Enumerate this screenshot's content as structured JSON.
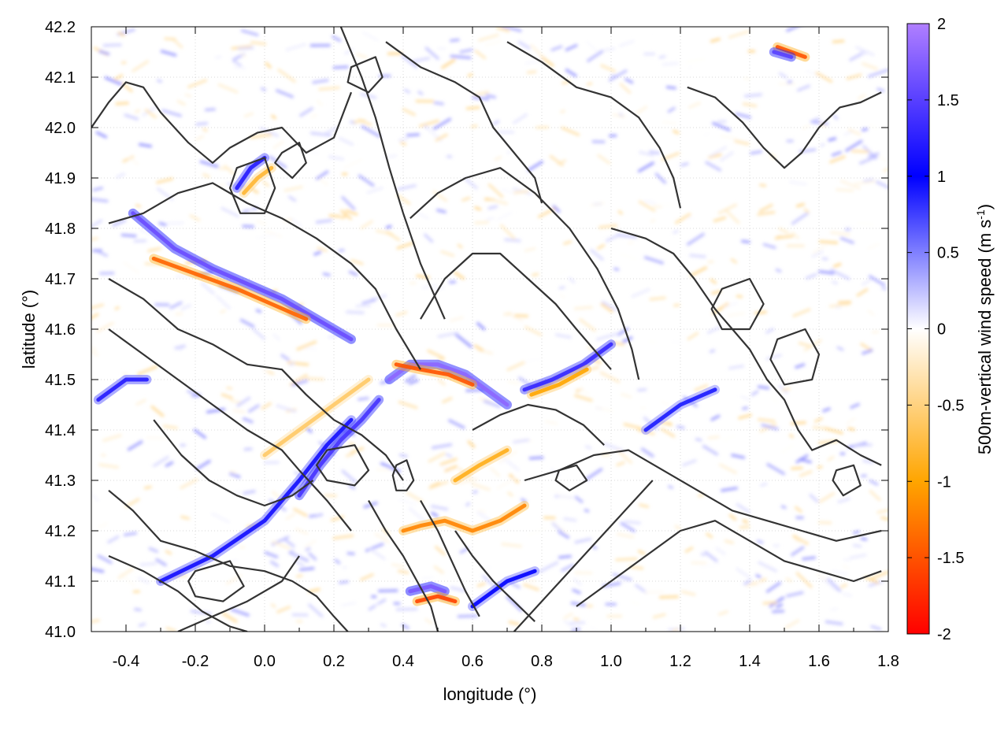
{
  "chart_data": {
    "type": "heatmap",
    "title": "",
    "xlabel": "longitude (°)",
    "ylabel": "latitude (°)",
    "xlim": [
      -0.5,
      1.8
    ],
    "ylim": [
      41.0,
      42.2
    ],
    "xticks": [
      -0.4,
      -0.2,
      0.0,
      0.2,
      0.4,
      0.6,
      0.8,
      1.0,
      1.2,
      1.4,
      1.6,
      1.8
    ],
    "xtick_labels": [
      "-0.4",
      "-0.2",
      "0.0",
      "0.2",
      "0.4",
      "0.6",
      "0.8",
      "1.0",
      "1.2",
      "1.4",
      "1.6",
      "1.8"
    ],
    "yticks": [
      41.0,
      41.1,
      41.2,
      41.3,
      41.4,
      41.5,
      41.6,
      41.7,
      41.8,
      41.9,
      42.0,
      42.1,
      42.2
    ],
    "ytick_labels": [
      "41.0",
      "41.1",
      "41.2",
      "41.3",
      "41.4",
      "41.5",
      "41.6",
      "41.7",
      "41.8",
      "41.9",
      "42.0",
      "42.1",
      "42.2"
    ],
    "grid": true,
    "colorbar": {
      "label_main": "500m-vertical wind speed (m s",
      "label_sup": "-1",
      "label_close": ")",
      "range": [
        -2,
        2
      ],
      "ticks": [
        -2,
        -1.5,
        -1,
        -0.5,
        0,
        0.5,
        1,
        1.5,
        2
      ],
      "tick_labels": [
        "-2",
        "-1.5",
        "-1",
        "-0.5",
        "0",
        "0.5",
        "1",
        "1.5",
        "2"
      ],
      "colors": {
        "-2": "#ff0000",
        "-1": "#ffa500",
        "0": "#ffffff",
        "1": "#0000ff",
        "2": "#b07fff"
      }
    },
    "features": [
      {
        "name": "ridge-nw",
        "lon": [
          -0.38,
          -0.26,
          -0.15,
          -0.05,
          0.05,
          0.15,
          0.25
        ],
        "lat": [
          41.83,
          41.76,
          41.72,
          41.69,
          41.66,
          41.62,
          41.58
        ],
        "value": 1.6
      },
      {
        "name": "ridge-nw-lee",
        "lon": [
          -0.32,
          -0.2,
          -0.08,
          0.02,
          0.12
        ],
        "lat": [
          41.74,
          41.71,
          41.68,
          41.65,
          41.62
        ],
        "value": -1.4
      },
      {
        "name": "ridge-central",
        "lon": [
          0.36,
          0.42,
          0.5,
          0.58,
          0.64,
          0.7
        ],
        "lat": [
          41.5,
          41.53,
          41.53,
          41.51,
          41.48,
          41.45
        ],
        "value": 1.8
      },
      {
        "name": "ridge-central-lee",
        "lon": [
          0.38,
          0.45,
          0.53,
          0.6
        ],
        "lat": [
          41.53,
          41.52,
          41.51,
          41.49
        ],
        "value": -1.5
      },
      {
        "name": "ridge-east",
        "lon": [
          0.75,
          0.83,
          0.92,
          1.0
        ],
        "lat": [
          41.48,
          41.5,
          41.53,
          41.57
        ],
        "value": 1.3
      },
      {
        "name": "ridge-east-lee",
        "lon": [
          0.77,
          0.85,
          0.93
        ],
        "lat": [
          41.47,
          41.49,
          41.52
        ],
        "value": -1.0
      },
      {
        "name": "ridge-diagonal",
        "lon": [
          -0.3,
          -0.15,
          0.0,
          0.1,
          0.18,
          0.25
        ],
        "lat": [
          41.1,
          41.15,
          41.22,
          41.3,
          41.37,
          41.42
        ],
        "value": 1.1
      },
      {
        "name": "ridge-diagonal-2",
        "lon": [
          0.1,
          0.16,
          0.22,
          0.28,
          0.33
        ],
        "lat": [
          41.27,
          41.33,
          41.38,
          41.42,
          41.46
        ],
        "value": 1.4
      },
      {
        "name": "ridge-south",
        "lon": [
          0.4,
          0.45,
          0.52,
          0.6,
          0.68,
          0.75
        ],
        "lat": [
          41.2,
          41.21,
          41.22,
          41.2,
          41.22,
          41.25
        ],
        "value": -1.2
      },
      {
        "name": "ridge-south-2",
        "lon": [
          0.42,
          0.48,
          0.52
        ],
        "lat": [
          41.08,
          41.09,
          41.08
        ],
        "value": 1.7
      },
      {
        "name": "ridge-south-2-lee",
        "lon": [
          0.44,
          0.5,
          0.55
        ],
        "lat": [
          41.06,
          41.07,
          41.06
        ],
        "value": -1.6
      },
      {
        "name": "ridge-ne",
        "lon": [
          1.48,
          1.52,
          1.56
        ],
        "lat": [
          42.16,
          42.15,
          42.14
        ],
        "value": -1.5
      },
      {
        "name": "ridge-ne-2",
        "lon": [
          1.47,
          1.52
        ],
        "lat": [
          42.15,
          42.14
        ],
        "value": 1.5
      },
      {
        "name": "ridge-nw-arc",
        "lon": [
          -0.08,
          -0.04,
          0.0
        ],
        "lat": [
          41.88,
          41.92,
          41.94
        ],
        "value": 1.2
      },
      {
        "name": "ridge-nw-arc-lee",
        "lon": [
          -0.06,
          -0.02,
          0.02
        ],
        "lat": [
          41.87,
          41.9,
          41.92
        ],
        "value": -0.8
      },
      {
        "name": "ridge-west-coast",
        "lon": [
          -0.48,
          -0.4,
          -0.34
        ],
        "lat": [
          41.46,
          41.5,
          41.5
        ],
        "value": 1.2
      },
      {
        "name": "ridge-midwest",
        "lon": [
          0.0,
          0.1,
          0.2,
          0.3
        ],
        "lat": [
          41.35,
          41.4,
          41.45,
          41.5
        ],
        "value": -0.6
      },
      {
        "name": "ridge-south-lee",
        "lon": [
          0.55,
          0.62,
          0.7
        ],
        "lat": [
          41.3,
          41.33,
          41.36
        ],
        "value": -0.9
      },
      {
        "name": "ridge-south-coast",
        "lon": [
          0.6,
          0.7,
          0.78
        ],
        "lat": [
          41.05,
          41.1,
          41.12
        ],
        "value": 1.0
      },
      {
        "name": "ridge-ne-inland",
        "lon": [
          1.1,
          1.2,
          1.3
        ],
        "lat": [
          41.4,
          41.45,
          41.48
        ],
        "value": 0.9
      }
    ],
    "contours": [
      {
        "lon": [
          -0.5,
          -0.45,
          -0.4,
          -0.35,
          -0.3,
          -0.22,
          -0.15,
          -0.1,
          -0.02,
          0.05,
          0.12,
          0.2,
          0.25
        ],
        "lat": [
          42.0,
          42.05,
          42.09,
          42.08,
          42.03,
          41.97,
          41.93,
          41.96,
          41.99,
          42.0,
          41.95,
          41.98,
          42.07
        ]
      },
      {
        "lon": [
          -0.45,
          -0.35,
          -0.25,
          -0.15,
          -0.05,
          0.05,
          0.15,
          0.25,
          0.32,
          0.38,
          0.45
        ],
        "lat": [
          41.81,
          41.83,
          41.87,
          41.89,
          41.85,
          41.82,
          41.78,
          41.73,
          41.68,
          41.6,
          41.52
        ]
      },
      {
        "lon": [
          -0.45,
          -0.35,
          -0.25,
          -0.15,
          -0.05,
          0.05,
          0.12,
          0.2,
          0.28,
          0.35,
          0.4
        ],
        "lat": [
          41.7,
          41.66,
          41.6,
          41.57,
          41.53,
          41.52,
          41.47,
          41.42,
          41.39,
          41.35,
          41.3
        ]
      },
      {
        "lon": [
          -0.45,
          -0.35,
          -0.25,
          -0.15,
          -0.05,
          0.05,
          0.1,
          0.18,
          0.25
        ],
        "lat": [
          41.6,
          41.55,
          41.5,
          41.45,
          41.4,
          41.36,
          41.32,
          41.26,
          41.2
        ]
      },
      {
        "lon": [
          -0.45,
          -0.38,
          -0.3,
          -0.2,
          -0.1,
          0.0,
          0.08,
          0.15,
          0.2,
          0.24
        ],
        "lat": [
          41.28,
          41.24,
          41.18,
          41.16,
          41.13,
          41.12,
          41.1,
          41.07,
          41.03,
          41.0
        ]
      },
      {
        "lon": [
          -0.45,
          -0.35,
          -0.25,
          -0.18,
          -0.1,
          -0.05
        ],
        "lat": [
          41.15,
          41.12,
          41.08,
          41.04,
          41.01,
          41.0
        ]
      },
      {
        "lon": [
          0.22,
          0.28,
          0.32,
          0.36,
          0.4,
          0.45,
          0.52
        ],
        "lat": [
          42.2,
          42.1,
          42.02,
          41.92,
          41.83,
          41.73,
          41.62
        ]
      },
      {
        "lon": [
          0.45,
          0.52,
          0.6,
          0.68,
          0.76,
          0.84,
          0.9,
          0.95,
          1.0
        ],
        "lat": [
          41.62,
          41.7,
          41.75,
          41.75,
          41.7,
          41.65,
          41.6,
          41.56,
          41.52
        ]
      },
      {
        "lon": [
          0.35,
          0.45,
          0.55,
          0.62,
          0.66,
          0.72,
          0.78,
          0.8
        ],
        "lat": [
          42.17,
          42.12,
          42.09,
          42.06,
          42.0,
          41.95,
          41.9,
          41.85
        ]
      },
      {
        "lon": [
          0.42,
          0.5,
          0.58,
          0.68,
          0.78,
          0.88,
          0.96,
          1.02,
          1.06,
          1.08
        ],
        "lat": [
          41.82,
          41.87,
          41.9,
          41.92,
          41.87,
          41.8,
          41.72,
          41.64,
          41.56,
          41.5
        ]
      },
      {
        "lon": [
          0.7,
          0.8,
          0.9,
          1.0,
          1.08,
          1.14,
          1.18,
          1.2
        ],
        "lat": [
          42.17,
          42.13,
          42.08,
          42.06,
          42.02,
          41.96,
          41.9,
          41.84
        ]
      },
      {
        "lon": [
          1.0,
          1.1,
          1.18,
          1.24,
          1.3,
          1.35
        ],
        "lat": [
          41.8,
          41.78,
          41.75,
          41.7,
          41.64,
          41.6
        ]
      },
      {
        "lon": [
          1.22,
          1.3,
          1.38,
          1.44,
          1.5,
          1.55,
          1.6,
          1.66,
          1.72,
          1.78
        ],
        "lat": [
          42.08,
          42.06,
          42.01,
          41.96,
          41.92,
          41.95,
          42.0,
          42.04,
          42.05,
          42.07
        ]
      },
      {
        "lon": [
          1.35,
          1.4,
          1.45,
          1.5,
          1.54,
          1.58,
          1.65,
          1.72,
          1.78
        ],
        "lat": [
          41.6,
          41.56,
          41.5,
          41.46,
          41.4,
          41.36,
          41.38,
          41.35,
          41.33
        ]
      },
      {
        "lon": [
          0.75,
          0.85,
          0.95,
          1.05,
          1.15,
          1.25,
          1.35,
          1.45,
          1.55,
          1.65,
          1.78
        ],
        "lat": [
          41.3,
          41.32,
          41.35,
          41.36,
          41.32,
          41.28,
          41.24,
          41.22,
          41.2,
          41.18,
          41.2
        ]
      },
      {
        "lon": [
          0.9,
          1.0,
          1.1,
          1.2,
          1.3,
          1.4,
          1.5,
          1.6,
          1.7,
          1.78
        ],
        "lat": [
          41.05,
          41.1,
          41.15,
          41.2,
          41.22,
          41.18,
          41.14,
          41.12,
          41.1,
          41.12
        ]
      },
      {
        "lon": [
          0.72,
          0.8,
          0.88,
          0.96,
          1.04,
          1.12
        ],
        "lat": [
          41.0,
          41.06,
          41.12,
          41.18,
          41.24,
          41.3
        ]
      },
      {
        "lon": [
          0.55,
          0.6,
          0.66,
          0.72,
          0.78
        ],
        "lat": [
          41.2,
          41.15,
          41.1,
          41.06,
          41.02
        ]
      },
      {
        "lon": [
          0.45,
          0.5,
          0.54,
          0.58,
          0.62
        ],
        "lat": [
          41.26,
          41.2,
          41.14,
          41.08,
          41.03
        ]
      },
      {
        "lon": [
          0.3,
          0.35,
          0.4,
          0.44,
          0.48,
          0.5
        ],
        "lat": [
          41.26,
          41.2,
          41.15,
          41.1,
          41.05,
          41.0
        ]
      },
      {
        "lon": [
          -0.32,
          -0.24,
          -0.16,
          -0.08,
          0.0,
          0.08,
          0.14
        ],
        "lat": [
          41.42,
          41.35,
          41.3,
          41.27,
          41.25,
          41.27,
          41.3
        ]
      },
      {
        "lon": [
          0.6,
          0.68,
          0.76,
          0.84,
          0.92,
          0.98
        ],
        "lat": [
          41.4,
          41.43,
          41.45,
          41.44,
          41.41,
          41.37
        ]
      },
      {
        "lon": [
          -0.25,
          -0.15,
          -0.05,
          0.05,
          0.1
        ],
        "lat": [
          41.0,
          41.03,
          41.06,
          41.1,
          41.15
        ]
      }
    ],
    "closed_contours": [
      {
        "lon": [
          0.38,
          0.41,
          0.43,
          0.41,
          0.38,
          0.37,
          0.38
        ],
        "lat": [
          41.33,
          41.34,
          41.3,
          41.28,
          41.28,
          41.31,
          41.33
        ]
      },
      {
        "lon": [
          1.48,
          1.56,
          1.6,
          1.58,
          1.5,
          1.46,
          1.48
        ],
        "lat": [
          41.58,
          41.6,
          41.55,
          41.5,
          41.49,
          41.54,
          41.58
        ]
      },
      {
        "lon": [
          1.32,
          1.4,
          1.44,
          1.4,
          1.32,
          1.29,
          1.32
        ],
        "lat": [
          41.68,
          41.7,
          41.65,
          41.6,
          41.6,
          41.64,
          41.68
        ]
      },
      {
        "lon": [
          -0.08,
          0.0,
          0.03,
          0.0,
          -0.07,
          -0.1,
          -0.08
        ],
        "lat": [
          41.92,
          41.94,
          41.88,
          41.83,
          41.83,
          41.88,
          41.92
        ]
      },
      {
        "lon": [
          0.05,
          0.1,
          0.12,
          0.08,
          0.03,
          0.05
        ],
        "lat": [
          41.95,
          41.97,
          41.93,
          41.9,
          41.93,
          41.95
        ]
      },
      {
        "lon": [
          -0.2,
          -0.1,
          -0.06,
          -0.12,
          -0.2,
          -0.22,
          -0.2
        ],
        "lat": [
          41.12,
          41.14,
          41.09,
          41.06,
          41.07,
          41.1,
          41.12
        ]
      },
      {
        "lon": [
          0.18,
          0.26,
          0.3,
          0.26,
          0.18,
          0.15,
          0.18
        ],
        "lat": [
          41.36,
          41.37,
          41.32,
          41.29,
          41.3,
          41.33,
          41.36
        ]
      },
      {
        "lon": [
          0.85,
          0.9,
          0.93,
          0.88,
          0.84,
          0.85
        ],
        "lat": [
          41.32,
          41.33,
          41.3,
          41.28,
          41.3,
          41.32
        ]
      },
      {
        "lon": [
          1.65,
          1.7,
          1.72,
          1.67,
          1.64,
          1.65
        ],
        "lat": [
          41.32,
          41.33,
          41.29,
          41.27,
          41.3,
          41.32
        ]
      },
      {
        "lon": [
          0.25,
          0.32,
          0.34,
          0.3,
          0.24,
          0.25
        ],
        "lat": [
          42.12,
          42.14,
          42.1,
          42.07,
          42.09,
          42.12
        ]
      }
    ]
  }
}
